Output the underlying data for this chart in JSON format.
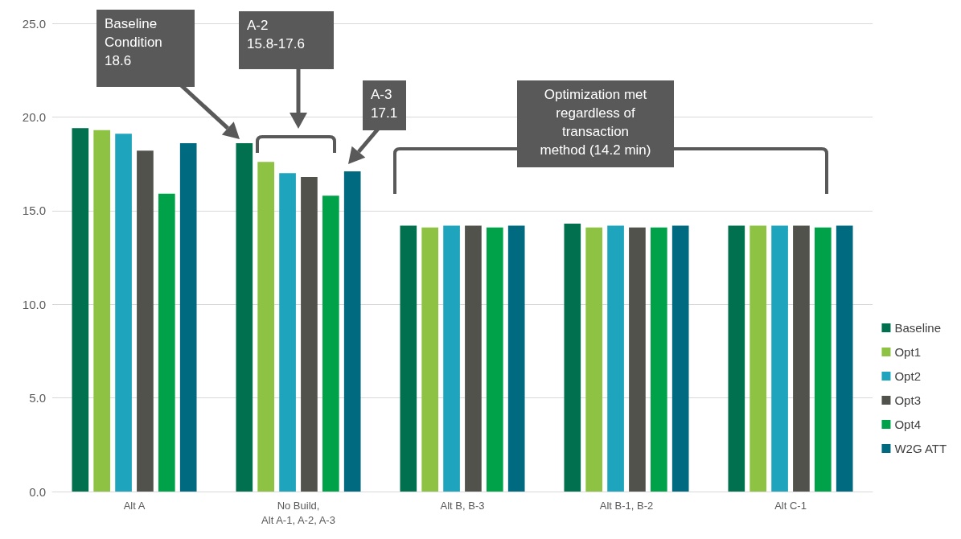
{
  "chart_data": {
    "type": "bar",
    "categories": [
      "Alt A",
      "No Build,\nAlt A-1, A-2, A-3",
      "Alt B, B-3",
      "Alt B-1, B-2",
      "Alt C-1"
    ],
    "series": [
      {
        "name": "Baseline",
        "color": "#00704f",
        "values": [
          19.4,
          18.6,
          14.2,
          14.3,
          14.2
        ]
      },
      {
        "name": "Opt1",
        "color": "#8dc243",
        "values": [
          19.3,
          17.6,
          14.1,
          14.1,
          14.2
        ]
      },
      {
        "name": "Opt2",
        "color": "#1ea5bd",
        "values": [
          19.1,
          17.0,
          14.2,
          14.2,
          14.2
        ]
      },
      {
        "name": "Opt3",
        "color": "#52524c",
        "values": [
          18.2,
          16.8,
          14.2,
          14.1,
          14.2
        ]
      },
      {
        "name": "Opt4",
        "color": "#00a249",
        "values": [
          15.9,
          15.8,
          14.1,
          14.1,
          14.1
        ]
      },
      {
        "name": "W2G ATT",
        "color": "#006a80",
        "values": [
          18.6,
          17.1,
          14.2,
          14.2,
          14.2
        ]
      }
    ],
    "ylim": [
      0,
      25
    ],
    "yticks": [
      {
        "value": 0,
        "label": "0.0"
      },
      {
        "value": 5,
        "label": "5.0"
      },
      {
        "value": 10,
        "label": "10.0"
      },
      {
        "value": 15,
        "label": "15.0"
      },
      {
        "value": 20,
        "label": "20.0"
      },
      {
        "value": 25,
        "label": "25.0"
      }
    ],
    "grid": "y",
    "legend": "right",
    "annotations": [
      "Baseline\nCondition\n18.6",
      "A-2\n15.8-17.6",
      "A-3\n17.1",
      "Optimization met\nregardless of\ntransaction\nmethod (14.2 min)"
    ]
  }
}
